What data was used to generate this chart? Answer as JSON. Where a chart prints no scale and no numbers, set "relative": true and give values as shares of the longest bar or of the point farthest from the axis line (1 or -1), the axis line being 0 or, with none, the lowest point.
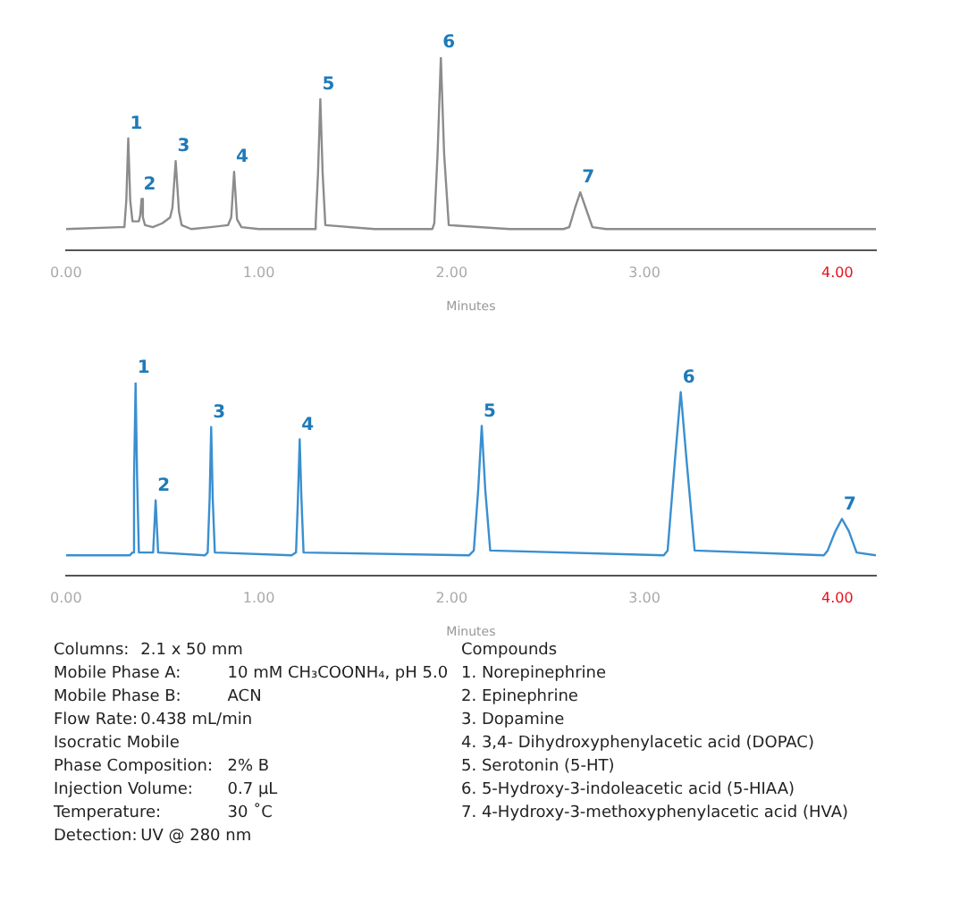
{
  "chart_data": [
    {
      "type": "line",
      "xlabel": "Minutes",
      "relative": true,
      "legend": false,
      "grid": false,
      "tick_labels": "x",
      "marker": "none",
      "line_style": "solid",
      "xlim": [
        0,
        4.2
      ],
      "xticks": [
        {
          "value": 0,
          "label": "0.00"
        },
        {
          "value": 1,
          "label": "1.00"
        },
        {
          "value": 2,
          "label": "2.00"
        },
        {
          "value": 3,
          "label": "3.00"
        },
        {
          "value": 4,
          "label": "4.00"
        }
      ],
      "series": [
        {
          "color": "#8c8c8c",
          "x": [
            0,
            0.28,
            0.303,
            0.313,
            0.323,
            0.333,
            0.345,
            0.378,
            0.385,
            0.392,
            0.399,
            0.41,
            0.45,
            0.5,
            0.54,
            0.552,
            0.569,
            0.586,
            0.6,
            0.65,
            0.75,
            0.84,
            0.857,
            0.872,
            0.887,
            0.91,
            1.0,
            1.29,
            1.295,
            1.307,
            1.319,
            1.331,
            1.345,
            1.6,
            1.9,
            1.91,
            1.927,
            1.944,
            1.961,
            1.985,
            2.3,
            2.58,
            2.61,
            2.64,
            2.667,
            2.695,
            2.73,
            2.8,
            4.2
          ],
          "values": [
            0.11,
            0.12,
            0.12,
            0.26,
            0.58,
            0.26,
            0.15,
            0.15,
            0.18,
            0.266,
            0.17,
            0.13,
            0.12,
            0.14,
            0.17,
            0.22,
            0.462,
            0.2,
            0.13,
            0.11,
            0.12,
            0.13,
            0.17,
            0.407,
            0.16,
            0.12,
            0.11,
            0.11,
            0.14,
            0.4,
            0.783,
            0.4,
            0.13,
            0.11,
            0.11,
            0.14,
            0.5,
            1.0,
            0.5,
            0.13,
            0.11,
            0.11,
            0.12,
            0.22,
            0.3,
            0.22,
            0.12,
            0.11,
            0.11
          ]
        }
      ],
      "annotations": [
        {
          "text": "1",
          "x": 0.323,
          "y": 0.58
        },
        {
          "text": "2",
          "x": 0.392,
          "y": 0.266
        },
        {
          "text": "3",
          "x": 0.569,
          "y": 0.462
        },
        {
          "text": "4",
          "x": 0.872,
          "y": 0.407
        },
        {
          "text": "5",
          "x": 1.319,
          "y": 0.783
        },
        {
          "text": "6",
          "x": 1.944,
          "y": 1.0
        },
        {
          "text": "7",
          "x": 2.667,
          "y": 0.3
        }
      ]
    },
    {
      "type": "line",
      "xlabel": "Minutes",
      "relative": true,
      "legend": false,
      "grid": false,
      "tick_labels": "x",
      "marker": "none",
      "line_style": "solid",
      "xlim": [
        0,
        4.2
      ],
      "xticks": [
        {
          "value": 0,
          "label": "0.00"
        },
        {
          "value": 1,
          "label": "1.00"
        },
        {
          "value": 2,
          "label": "2.00"
        },
        {
          "value": 3,
          "label": "3.00"
        },
        {
          "value": 4,
          "label": "4.00"
        }
      ],
      "series": [
        {
          "color": "#3a8fd0",
          "x": [
            0,
            0.33,
            0.345,
            0.353,
            0.361,
            0.369,
            0.378,
            0.452,
            0.465,
            0.478,
            0.72,
            0.735,
            0.745,
            0.753,
            0.761,
            0.772,
            1.17,
            1.193,
            1.203,
            1.212,
            1.221,
            1.232,
            2.09,
            2.115,
            2.138,
            2.156,
            2.174,
            2.2,
            3.1,
            3.12,
            3.158,
            3.188,
            3.218,
            3.26,
            3.93,
            3.95,
            3.99,
            4.024,
            4.06,
            4.1,
            4.2
          ],
          "values": [
            0.105,
            0.105,
            0.12,
            0.5,
            1.0,
            0.5,
            0.12,
            0.12,
            0.39,
            0.12,
            0.105,
            0.12,
            0.4,
            0.77,
            0.4,
            0.12,
            0.105,
            0.12,
            0.4,
            0.706,
            0.4,
            0.12,
            0.105,
            0.13,
            0.45,
            0.776,
            0.45,
            0.13,
            0.105,
            0.13,
            0.6,
            0.951,
            0.6,
            0.13,
            0.105,
            0.13,
            0.23,
            0.294,
            0.23,
            0.12,
            0.105
          ]
        }
      ],
      "annotations": [
        {
          "text": "1",
          "x": 0.361,
          "y": 1.0
        },
        {
          "text": "2",
          "x": 0.465,
          "y": 0.39
        },
        {
          "text": "3",
          "x": 0.753,
          "y": 0.77
        },
        {
          "text": "4",
          "x": 1.212,
          "y": 0.706
        },
        {
          "text": "5",
          "x": 2.156,
          "y": 0.776
        },
        {
          "text": "6",
          "x": 3.188,
          "y": 0.951
        },
        {
          "text": "7",
          "x": 4.024,
          "y": 0.294
        }
      ]
    },
    {
      "type": "other",
      "annotations": [
        "Columns:\t2.1 x 50 mm",
        "Mobile Phase A:\t10 mM CH₃COONH₄, pH 5.0",
        "Mobile Phase B:\tACN",
        "Flow Rate:\t0.438 mL/min",
        "Isocratic Mobile",
        "Phase Composition:\t2% B",
        "Injection Volume:\t0.7 µL",
        "Temperature:\t30 ˚C",
        "Detection:\tUV @ 280 nm",
        "Compounds",
        "1. Norepinephrine",
        "2. Epinephrine",
        "3. Dopamine",
        "4. 3,4- Dihydroxyphenylacetic acid (DOPAC)",
        "5. Serotonin (5-HT)",
        "6. 5-Hydroxy-3-indoleacetic acid (5-HIAA)",
        "7. 4-Hydroxy-3-methoxyphenylacetic acid (HVA)"
      ]
    }
  ]
}
